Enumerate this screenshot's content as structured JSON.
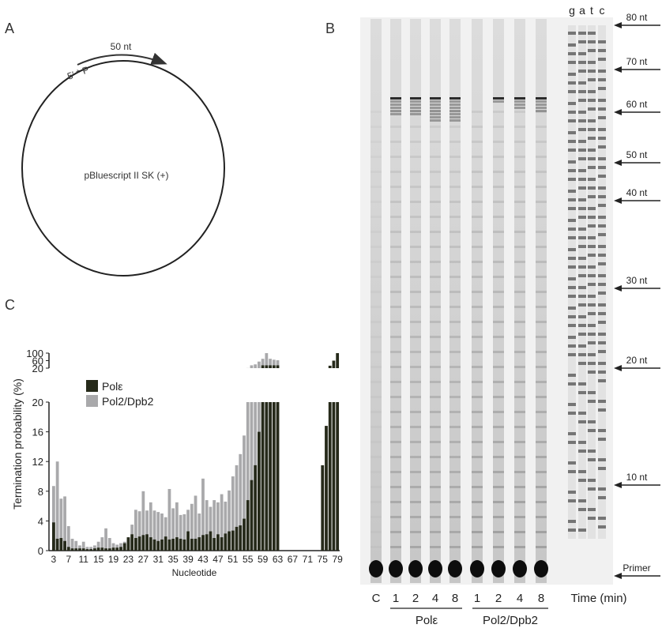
{
  "panels": {
    "a": "A",
    "b": "B",
    "c": "C"
  },
  "plasmid": {
    "label": "pBluescript II SK (+)",
    "primer_label": "5′ * P",
    "extension_label": "50 nt"
  },
  "gel": {
    "sequencing_lanes": [
      "g",
      "a",
      "t",
      "c"
    ],
    "size_markers": [
      "80 nt",
      "70 nt",
      "60 nt",
      "50 nt",
      "40 nt",
      "30 nt",
      "20 nt",
      "10 nt",
      "Primer"
    ],
    "lane_labels": [
      "C",
      "1",
      "2",
      "4",
      "8",
      "1",
      "2",
      "4",
      "8"
    ],
    "time_label": "Time (min)",
    "groups": [
      "Polε",
      "Pol2/Dpb2"
    ]
  },
  "chart_data": {
    "type": "bar",
    "ylabel": "Termination probability (%)",
    "xlabel": "Nucleotide",
    "x": [
      3,
      4,
      5,
      6,
      7,
      8,
      9,
      10,
      11,
      12,
      13,
      14,
      15,
      16,
      17,
      18,
      19,
      20,
      21,
      22,
      23,
      24,
      25,
      26,
      27,
      28,
      29,
      30,
      31,
      32,
      33,
      34,
      35,
      36,
      37,
      38,
      39,
      40,
      41,
      42,
      43,
      44,
      45,
      46,
      47,
      48,
      49,
      50,
      51,
      52,
      53,
      54,
      55,
      56,
      57,
      58,
      59,
      60,
      61,
      62,
      63,
      64,
      65,
      66,
      67,
      68,
      69,
      70,
      71,
      72,
      73,
      74,
      75,
      76,
      77,
      78,
      79
    ],
    "x_tick_labels": [
      "3",
      "7",
      "11",
      "15",
      "19",
      "23",
      "27",
      "31",
      "35",
      "39",
      "43",
      "47",
      "51",
      "55",
      "59",
      "63",
      "67",
      "71",
      "75",
      "79"
    ],
    "y_lower_ticks": [
      "0",
      "4",
      "8",
      "12",
      "16",
      "20"
    ],
    "y_upper_ticks": [
      "20",
      "60",
      "100"
    ],
    "ylim_lower": [
      0,
      20
    ],
    "ylim_upper": [
      20,
      100
    ],
    "legend_position": "top-left",
    "series": [
      {
        "name": "Polε",
        "color": "#262a1a",
        "values": [
          3.8,
          1.6,
          1.7,
          1.3,
          0.5,
          0.3,
          0.3,
          0.3,
          0.3,
          0.2,
          0.2,
          0.3,
          0.4,
          0.4,
          0.3,
          0.3,
          0.4,
          0.4,
          0.5,
          1,
          1.8,
          2.2,
          1.7,
          1.9,
          2.1,
          2.2,
          1.8,
          1.5,
          1.3,
          1.5,
          1.9,
          1.5,
          1.6,
          1.8,
          1.6,
          1.5,
          2.6,
          1.6,
          1.6,
          1.8,
          2.1,
          2.2,
          2.6,
          1.7,
          2.2,
          1.8,
          2.3,
          2.6,
          2.7,
          3.2,
          3.4,
          4.3,
          6.8,
          9.5,
          11.5,
          16,
          35,
          35,
          35,
          35,
          35,
          0,
          0,
          0,
          0,
          0,
          0,
          0,
          0,
          0,
          0,
          0,
          11.5,
          16.8,
          33,
          60,
          100
        ]
      },
      {
        "name": "Pol2/Dpb2",
        "color": "#a9a9ab",
        "values": [
          8.7,
          12,
          7,
          7.3,
          3.3,
          1.6,
          1.3,
          0.7,
          1.2,
          0.5,
          0.5,
          0.7,
          1.2,
          1.8,
          3,
          1.7,
          1,
          0.8,
          1,
          1.2,
          1.6,
          3.5,
          5.5,
          5.3,
          8,
          5.4,
          6.5,
          5.4,
          5.2,
          5,
          4.5,
          8.3,
          5.7,
          6.5,
          4.8,
          4.9,
          5.5,
          6.3,
          7.4,
          5,
          9.7,
          6.8,
          5.9,
          6.8,
          6.5,
          7.6,
          6.6,
          8.1,
          10,
          11.5,
          13,
          15.5,
          20.5,
          35,
          40,
          55,
          70,
          100,
          70,
          65,
          62,
          0,
          0,
          0,
          0,
          0,
          0,
          0,
          0,
          0,
          0,
          0,
          0,
          0,
          0,
          0,
          0
        ]
      }
    ]
  }
}
